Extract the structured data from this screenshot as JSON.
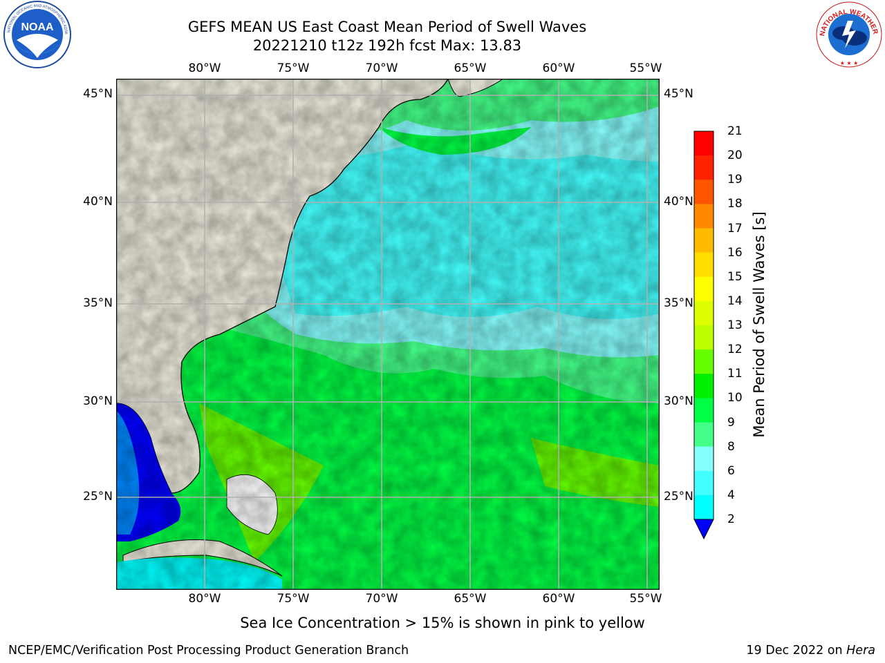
{
  "title_line1": "GEFS MEAN US East Coast Mean Period of Swell Waves",
  "title_line2": "20221210 t12z 192h fcst   Max: 13.83",
  "lon_labels": [
    "80°W",
    "75°W",
    "70°W",
    "65°W",
    "60°W",
    "55°W"
  ],
  "lat_labels": [
    "45°N",
    "40°N",
    "35°N",
    "30°N",
    "25°N"
  ],
  "colorbar": {
    "label": "Mean Period of Swell Waves [s]",
    "ticks": [
      "2",
      "4",
      "6",
      "8",
      "9",
      "10",
      "11",
      "12",
      "13",
      "14",
      "15",
      "16",
      "17",
      "18",
      "19",
      "20",
      "21"
    ],
    "colors": [
      "#0000ff",
      "#0088ff",
      "#00ffff",
      "#44ffff",
      "#88ffff",
      "#44ff88",
      "#00ff44",
      "#00ee00",
      "#66ff00",
      "#bbff00",
      "#ddff00",
      "#ffff00",
      "#ffdd00",
      "#ffbb00",
      "#ff8800",
      "#ff5500",
      "#ff2200",
      "#ff0000"
    ]
  },
  "subcaption": "Sea Ice Concentration > 15% is shown in pink to yellow",
  "footer_left": "NCEP/EMC/Verification Post Processing Product Generation Branch",
  "footer_date": "19 Dec 2022 on",
  "footer_host": "Hera",
  "logos": {
    "left": "NOAA",
    "left_ring_text": "NATIONAL OCEANIC AND ATMOSPHERIC ADMINISTRATION · U.S. DEPARTMENT OF COMMERCE",
    "right_ring_text": "NATIONAL WEATHER SERVICE"
  },
  "land_color": "#efedde",
  "grid_color": "#b0b0b0"
}
